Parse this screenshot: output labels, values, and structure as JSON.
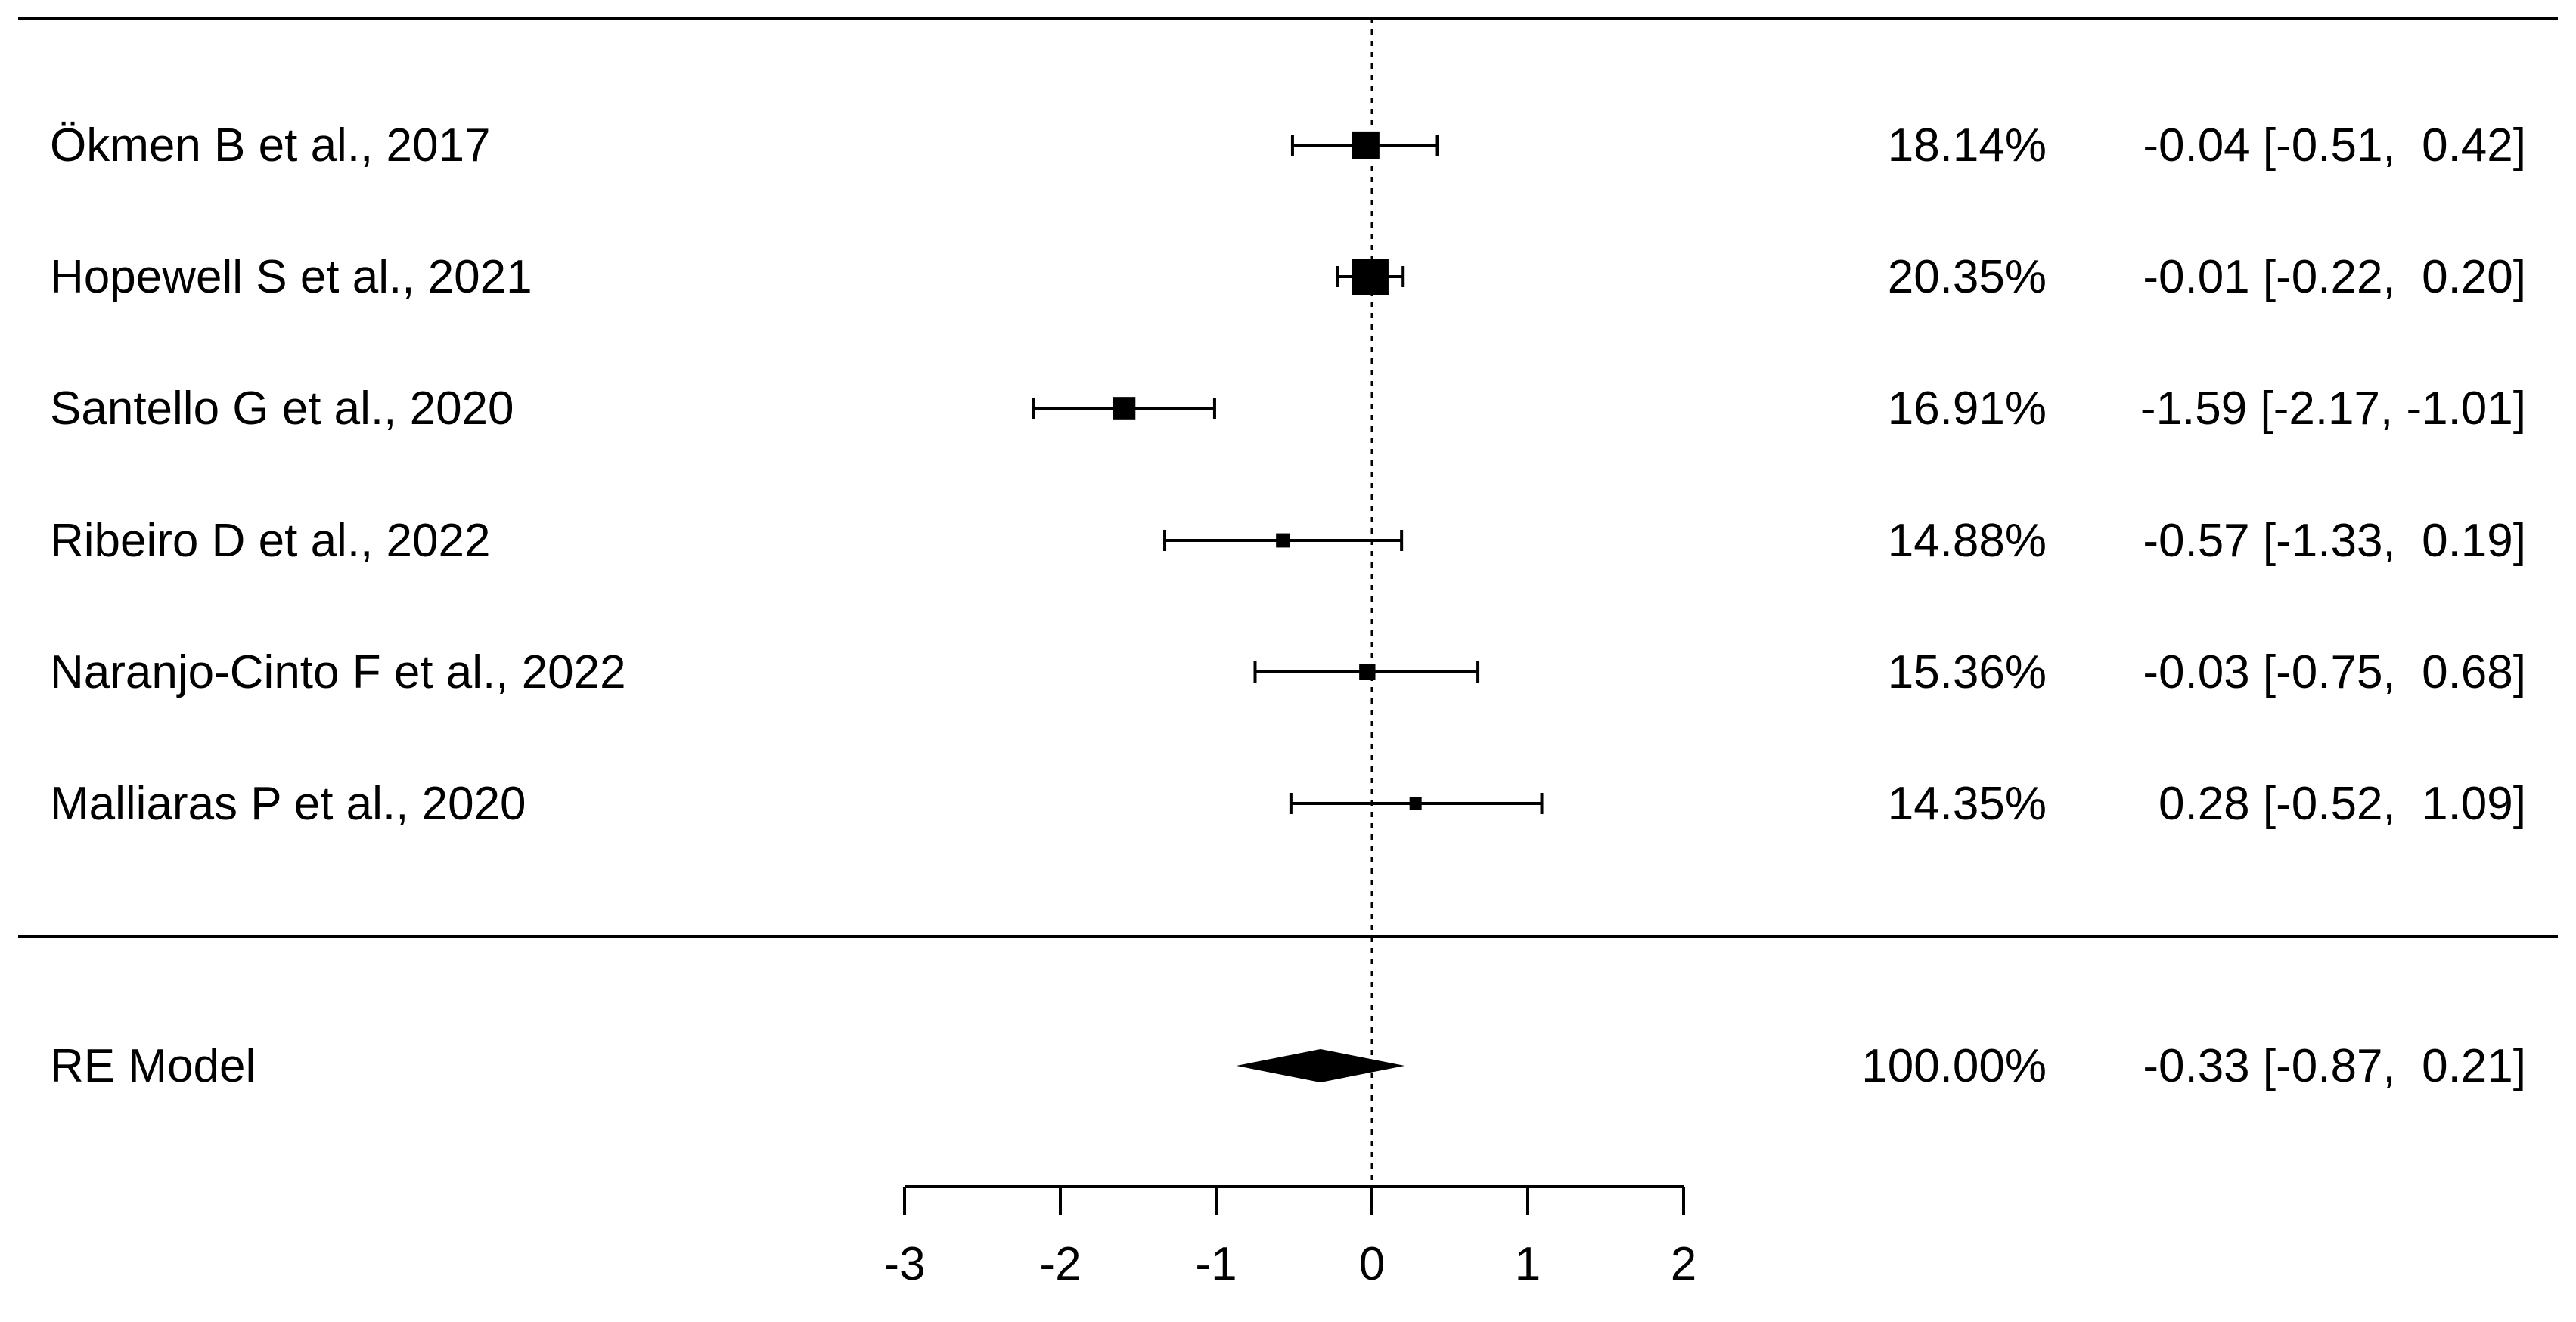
{
  "chart_data": {
    "type": "forest",
    "title": "",
    "xlabel": "",
    "ylabel": "",
    "xlim": [
      -3,
      2
    ],
    "x_ticks": [
      -3,
      -2,
      -1,
      0,
      1,
      2
    ],
    "x_tick_labels": [
      "-3",
      "-2",
      "-1",
      "0",
      "1",
      "2"
    ],
    "reference_line": 0,
    "grid": false,
    "studies": [
      {
        "label": "Ökmen B et al., 2017",
        "weight": 18.14,
        "weight_label": "18.14%",
        "estimate": -0.04,
        "ci_low": -0.51,
        "ci_high": 0.42,
        "ci_label": "-0.04 [-0.51,  0.42]"
      },
      {
        "label": "Hopewell S et al., 2021",
        "weight": 20.35,
        "weight_label": "20.35%",
        "estimate": -0.01,
        "ci_low": -0.22,
        "ci_high": 0.2,
        "ci_label": "-0.01 [-0.22,  0.20]"
      },
      {
        "label": "Santello G et al., 2020",
        "weight": 16.91,
        "weight_label": "16.91%",
        "estimate": -1.59,
        "ci_low": -2.17,
        "ci_high": -1.01,
        "ci_label": "-1.59 [-2.17, -1.01]"
      },
      {
        "label": "Ribeiro D et al., 2022",
        "weight": 14.88,
        "weight_label": "14.88%",
        "estimate": -0.57,
        "ci_low": -1.33,
        "ci_high": 0.19,
        "ci_label": "-0.57 [-1.33,  0.19]"
      },
      {
        "label": "Naranjo-Cinto F et al., 2022",
        "weight": 15.36,
        "weight_label": "15.36%",
        "estimate": -0.03,
        "ci_low": -0.75,
        "ci_high": 0.68,
        "ci_label": "-0.03 [-0.75,  0.68]"
      },
      {
        "label": "Malliaras P et al., 2020",
        "weight": 14.35,
        "weight_label": "14.35%",
        "estimate": 0.28,
        "ci_low": -0.52,
        "ci_high": 1.09,
        "ci_label": "0.28 [-0.52,  1.09]"
      }
    ],
    "summary": {
      "label": "RE Model",
      "weight": 100.0,
      "weight_label": "100.00%",
      "estimate": -0.33,
      "ci_low": -0.87,
      "ci_high": 0.21,
      "ci_label": "-0.33 [-0.87,  0.21]"
    }
  }
}
